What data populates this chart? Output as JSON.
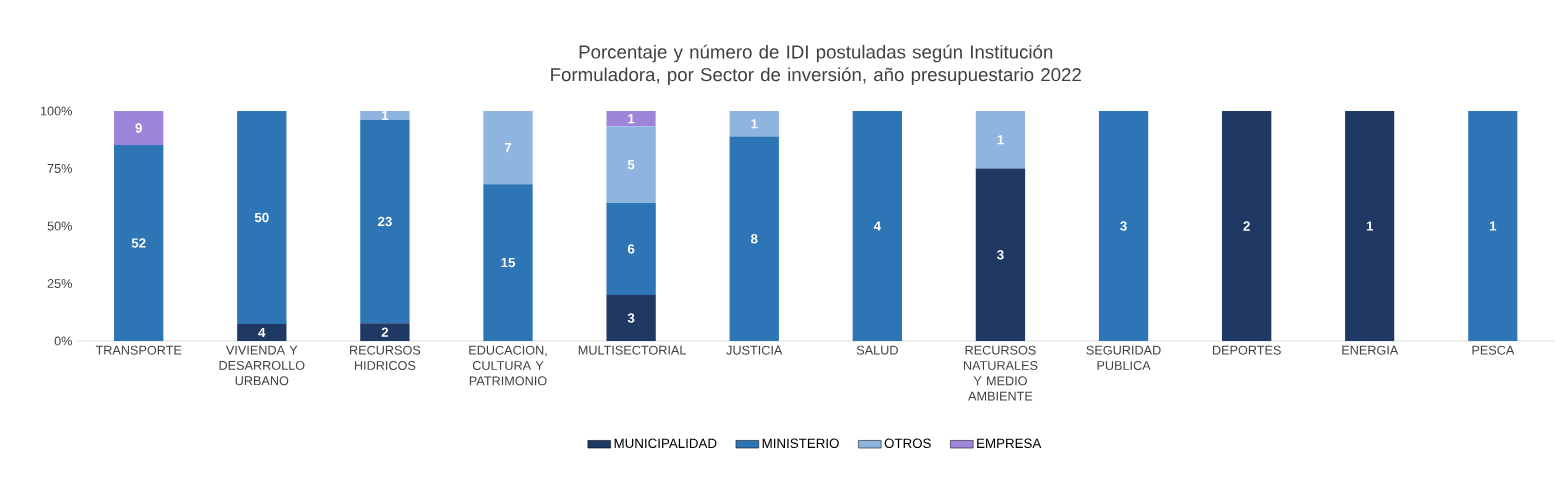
{
  "chart_data": {
    "type": "bar",
    "stacked": true,
    "title": "Porcentaje y número de IDI postuladas según Institución Formuladora, por Sector de inversión, año presupuestario 2022",
    "categories": [
      "TRANSPORTE",
      "VIVIENDA Y DESARROLLO URBANO",
      "RECURSOS HIDRICOS",
      "EDUCACION, CULTURA Y PATRIMONIO",
      "MULTISECTORIAL",
      "JUSTICIA",
      "SALUD",
      "RECURSOS NATURALES Y MEDIO AMBIENTE",
      "SEGURIDAD PUBLICA",
      "DEPORTES",
      "ENERGIA",
      "PESCA"
    ],
    "series": [
      {
        "name": "MUNICIPALIDAD",
        "color": "#203864",
        "values": [
          0,
          7.4,
          7.7,
          0,
          20,
          0,
          0,
          75,
          0,
          100,
          100,
          0
        ]
      },
      {
        "name": "MINISTERIO",
        "color": "#2e75b6",
        "values": [
          85.2,
          92.6,
          88.5,
          68.2,
          40,
          88.9,
          100,
          0,
          100,
          0,
          0,
          100
        ]
      },
      {
        "name": "OTROS",
        "color": "#8fb4e0",
        "values": [
          0,
          0,
          3.8,
          31.8,
          33.3,
          11.1,
          0,
          25,
          0,
          0,
          0,
          0
        ]
      },
      {
        "name": "EMPRESA",
        "color": "#9e85d9",
        "values": [
          14.8,
          0,
          0,
          0,
          6.7,
          0,
          0,
          0,
          0,
          0,
          0,
          0
        ]
      }
    ],
    "annotations": [
      "52",
      "9",
      "4",
      "50",
      "2",
      "23",
      "1",
      "15",
      "7",
      "3",
      "6",
      "5",
      "1",
      "8",
      "1",
      "4",
      "3",
      "1",
      "3",
      "2",
      "1",
      "1"
    ],
    "ylim": [
      0,
      100
    ],
    "yticks": [
      {
        "value": 0,
        "label": "0%"
      },
      {
        "value": 25,
        "label": "25%"
      },
      {
        "value": 50,
        "label": "50%"
      },
      {
        "value": 75,
        "label": "75%"
      },
      {
        "value": 100,
        "label": "100%"
      }
    ],
    "legend": "bottom"
  }
}
